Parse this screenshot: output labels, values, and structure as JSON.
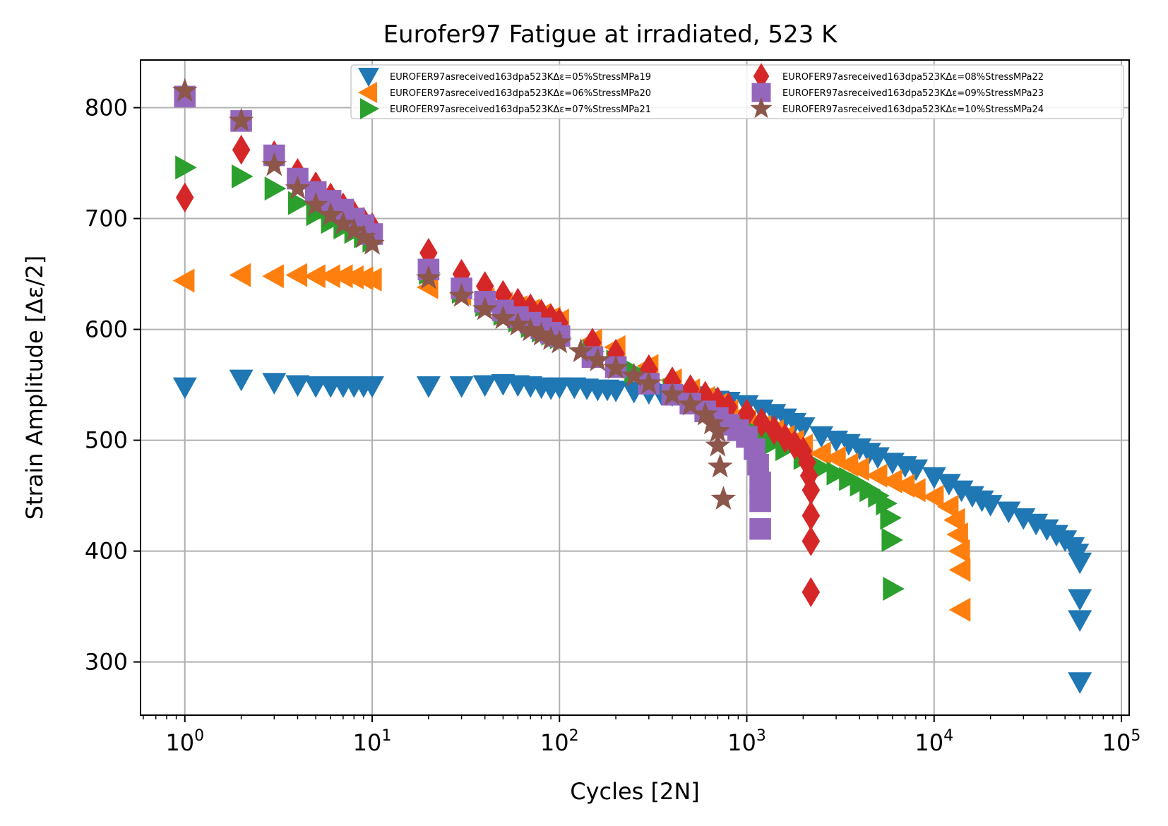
{
  "chart_data": {
    "type": "scatter",
    "title": "Eurofer97 Fatigue at irradiated, 523 K",
    "xlabel": "Cycles [2N]",
    "ylabel": "Strain Amplitude [Δε/2]",
    "xscale": "log",
    "xlim": [
      0.58,
      110000
    ],
    "ylim": [
      252,
      843
    ],
    "grid": true,
    "legend": {
      "placement": "top-right",
      "columns": 2
    },
    "x_tick_labels": [
      {
        "base": "10",
        "exp": "0",
        "value": 1
      },
      {
        "base": "10",
        "exp": "1",
        "value": 10
      },
      {
        "base": "10",
        "exp": "2",
        "value": 100
      },
      {
        "base": "10",
        "exp": "3",
        "value": 1000
      },
      {
        "base": "10",
        "exp": "4",
        "value": 10000
      },
      {
        "base": "10",
        "exp": "5",
        "value": 100000
      }
    ],
    "y_ticks": [
      300,
      400,
      500,
      600,
      700,
      800
    ],
    "y_tick_labels": [
      "300",
      "400",
      "500",
      "600",
      "700",
      "800"
    ],
    "series": [
      {
        "name": "EUROFER97asreceived163dpa523KΔε=05%StressMPa19",
        "color": "#1f77b4",
        "marker": "triangle-down",
        "points": [
          [
            1,
            548
          ],
          [
            2,
            555
          ],
          [
            3,
            552
          ],
          [
            4,
            550
          ],
          [
            5,
            549
          ],
          [
            6,
            549
          ],
          [
            7,
            549
          ],
          [
            8,
            549
          ],
          [
            9,
            549
          ],
          [
            10,
            549
          ],
          [
            20,
            549
          ],
          [
            30,
            549
          ],
          [
            40,
            550
          ],
          [
            50,
            551
          ],
          [
            60,
            550
          ],
          [
            70,
            549
          ],
          [
            80,
            548
          ],
          [
            90,
            547
          ],
          [
            100,
            548
          ],
          [
            120,
            548
          ],
          [
            140,
            547
          ],
          [
            160,
            546
          ],
          [
            180,
            546
          ],
          [
            200,
            545
          ],
          [
            250,
            544
          ],
          [
            300,
            543
          ],
          [
            350,
            542
          ],
          [
            400,
            541
          ],
          [
            500,
            540
          ],
          [
            600,
            538
          ],
          [
            700,
            536
          ],
          [
            800,
            535
          ],
          [
            1000,
            532
          ],
          [
            1200,
            528
          ],
          [
            1400,
            524
          ],
          [
            1600,
            520
          ],
          [
            1800,
            516
          ],
          [
            2000,
            512
          ],
          [
            2500,
            504
          ],
          [
            3000,
            500
          ],
          [
            3500,
            497
          ],
          [
            4000,
            493
          ],
          [
            4500,
            489
          ],
          [
            5000,
            485
          ],
          [
            6000,
            480
          ],
          [
            7000,
            477
          ],
          [
            8000,
            474
          ],
          [
            10000,
            467
          ],
          [
            12000,
            461
          ],
          [
            14000,
            455
          ],
          [
            16000,
            450
          ],
          [
            18000,
            446
          ],
          [
            20000,
            442
          ],
          [
            25000,
            436
          ],
          [
            30000,
            430
          ],
          [
            35000,
            425
          ],
          [
            40000,
            420
          ],
          [
            45000,
            415
          ],
          [
            50000,
            410
          ],
          [
            55000,
            404
          ],
          [
            58000,
            398
          ],
          [
            60000,
            390
          ],
          [
            60000,
            357
          ],
          [
            60000,
            338
          ],
          [
            60000,
            282
          ]
        ]
      },
      {
        "name": "EUROFER97asreceived163dpa523KΔε=06%StressMPa20",
        "color": "#ff7f0e",
        "marker": "triangle-left",
        "points": [
          [
            1,
            644
          ],
          [
            2,
            649
          ],
          [
            3,
            648
          ],
          [
            4,
            649
          ],
          [
            5,
            648
          ],
          [
            6,
            648
          ],
          [
            7,
            648
          ],
          [
            8,
            647
          ],
          [
            9,
            646
          ],
          [
            10,
            645
          ],
          [
            20,
            638
          ],
          [
            30,
            632
          ],
          [
            40,
            627
          ],
          [
            50,
            623
          ],
          [
            60,
            620
          ],
          [
            70,
            617
          ],
          [
            80,
            613
          ],
          [
            90,
            610
          ],
          [
            100,
            608
          ],
          [
            150,
            590
          ],
          [
            200,
            584
          ],
          [
            300,
            567
          ],
          [
            400,
            554
          ],
          [
            500,
            545
          ],
          [
            600,
            538
          ],
          [
            700,
            532
          ],
          [
            800,
            526
          ],
          [
            900,
            521
          ],
          [
            1000,
            517
          ],
          [
            1200,
            512
          ],
          [
            1400,
            508
          ],
          [
            1600,
            503
          ],
          [
            1800,
            499
          ],
          [
            2000,
            495
          ],
          [
            2500,
            488
          ],
          [
            3000,
            484
          ],
          [
            3500,
            478
          ],
          [
            4000,
            474
          ],
          [
            5000,
            468
          ],
          [
            6000,
            463
          ],
          [
            7000,
            459
          ],
          [
            8000,
            455
          ],
          [
            10000,
            449
          ],
          [
            12000,
            440
          ],
          [
            13000,
            428
          ],
          [
            13500,
            415
          ],
          [
            13800,
            400
          ],
          [
            13900,
            383
          ],
          [
            13900,
            347
          ]
        ]
      },
      {
        "name": "EUROFER97asreceived163dpa523KΔε=07%StressMPa21",
        "color": "#2ca02c",
        "marker": "triangle-right",
        "points": [
          [
            1,
            746
          ],
          [
            2,
            738
          ],
          [
            3,
            727
          ],
          [
            4,
            714
          ],
          [
            5,
            704
          ],
          [
            6,
            697
          ],
          [
            7,
            692
          ],
          [
            8,
            688
          ],
          [
            9,
            684
          ],
          [
            10,
            680
          ],
          [
            20,
            651
          ],
          [
            30,
            634
          ],
          [
            40,
            622
          ],
          [
            50,
            614
          ],
          [
            60,
            608
          ],
          [
            70,
            603
          ],
          [
            80,
            599
          ],
          [
            90,
            596
          ],
          [
            100,
            593
          ],
          [
            150,
            580
          ],
          [
            200,
            571
          ],
          [
            250,
            562
          ],
          [
            300,
            555
          ],
          [
            400,
            545
          ],
          [
            500,
            537
          ],
          [
            600,
            530
          ],
          [
            700,
            524
          ],
          [
            800,
            519
          ],
          [
            1000,
            511
          ],
          [
            1200,
            504
          ],
          [
            1400,
            498
          ],
          [
            1600,
            492
          ],
          [
            2000,
            484
          ],
          [
            2500,
            475
          ],
          [
            3000,
            470
          ],
          [
            3500,
            465
          ],
          [
            4000,
            460
          ],
          [
            4500,
            455
          ],
          [
            5000,
            450
          ],
          [
            5500,
            443
          ],
          [
            5800,
            430
          ],
          [
            5900,
            410
          ],
          [
            6000,
            366
          ]
        ]
      },
      {
        "name": "EUROFER97asreceived163dpa523KΔε=08%StressMPa22",
        "color": "#d62728",
        "marker": "diamond",
        "points": [
          [
            1,
            719
          ],
          [
            2,
            762
          ],
          [
            3,
            757
          ],
          [
            4,
            741
          ],
          [
            5,
            729
          ],
          [
            6,
            719
          ],
          [
            7,
            710
          ],
          [
            8,
            703
          ],
          [
            9,
            697
          ],
          [
            10,
            692
          ],
          [
            20,
            669
          ],
          [
            30,
            650
          ],
          [
            40,
            639
          ],
          [
            50,
            631
          ],
          [
            60,
            624
          ],
          [
            70,
            619
          ],
          [
            80,
            614
          ],
          [
            90,
            610
          ],
          [
            100,
            606
          ],
          [
            150,
            588
          ],
          [
            200,
            578
          ],
          [
            300,
            564
          ],
          [
            400,
            553
          ],
          [
            500,
            546
          ],
          [
            600,
            540
          ],
          [
            700,
            535
          ],
          [
            800,
            530
          ],
          [
            1000,
            524
          ],
          [
            1200,
            516
          ],
          [
            1400,
            509
          ],
          [
            1600,
            502
          ],
          [
            1800,
            496
          ],
          [
            2000,
            490
          ],
          [
            2100,
            480
          ],
          [
            2150,
            468
          ],
          [
            2200,
            455
          ],
          [
            2200,
            432
          ],
          [
            2200,
            409
          ],
          [
            2200,
            363
          ]
        ]
      },
      {
        "name": "EUROFER97asreceived163dpa523KΔε=09%StressMPa23",
        "color": "#9467bd",
        "marker": "square",
        "points": [
          [
            1,
            810
          ],
          [
            2,
            788
          ],
          [
            3,
            757
          ],
          [
            4,
            736
          ],
          [
            5,
            724
          ],
          [
            6,
            716
          ],
          [
            7,
            708
          ],
          [
            8,
            700
          ],
          [
            9,
            694
          ],
          [
            10,
            686
          ],
          [
            20,
            654
          ],
          [
            30,
            637
          ],
          [
            40,
            625
          ],
          [
            50,
            617
          ],
          [
            60,
            611
          ],
          [
            70,
            606
          ],
          [
            80,
            601
          ],
          [
            90,
            597
          ],
          [
            100,
            594
          ],
          [
            150,
            575
          ],
          [
            200,
            566
          ],
          [
            300,
            551
          ],
          [
            400,
            541
          ],
          [
            500,
            533
          ],
          [
            600,
            526
          ],
          [
            700,
            520
          ],
          [
            800,
            514
          ],
          [
            900,
            509
          ],
          [
            1000,
            503
          ],
          [
            1100,
            492
          ],
          [
            1150,
            478
          ],
          [
            1180,
            462
          ],
          [
            1180,
            445
          ],
          [
            1180,
            420
          ]
        ]
      },
      {
        "name": "EUROFER97asreceived163dpa523KΔε=10%StressMPa24",
        "color": "#8c564b",
        "marker": "star",
        "points": [
          [
            1,
            815
          ],
          [
            2,
            788
          ],
          [
            3,
            748
          ],
          [
            4,
            727
          ],
          [
            5,
            712
          ],
          [
            6,
            703
          ],
          [
            7,
            695
          ],
          [
            8,
            689
          ],
          [
            9,
            683
          ],
          [
            10,
            677
          ],
          [
            20,
            646
          ],
          [
            30,
            630
          ],
          [
            40,
            618
          ],
          [
            50,
            610
          ],
          [
            60,
            604
          ],
          [
            70,
            599
          ],
          [
            80,
            595
          ],
          [
            90,
            591
          ],
          [
            100,
            588
          ],
          [
            130,
            580
          ],
          [
            160,
            572
          ],
          [
            200,
            565
          ],
          [
            250,
            558
          ],
          [
            300,
            551
          ],
          [
            400,
            541
          ],
          [
            500,
            532
          ],
          [
            600,
            523
          ],
          [
            650,
            515
          ],
          [
            700,
            508
          ],
          [
            700,
            495
          ],
          [
            720,
            476
          ],
          [
            750,
            447
          ]
        ]
      }
    ]
  }
}
